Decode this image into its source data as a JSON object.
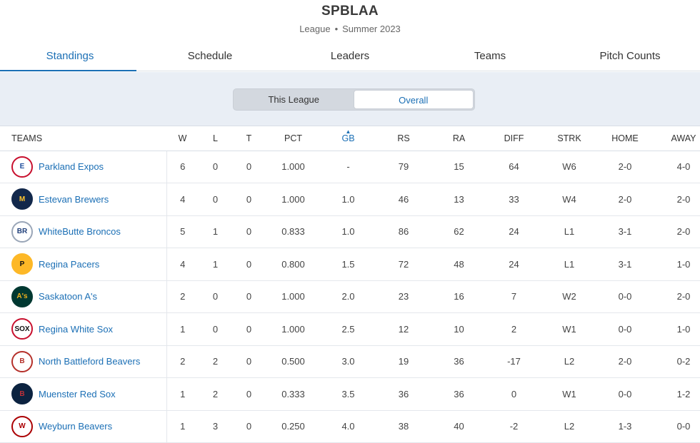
{
  "header": {
    "title": "SPBLAA",
    "subtitle_type": "League",
    "subtitle_separator": "•",
    "subtitle_season": "Summer 2023"
  },
  "tabs": [
    {
      "label": "Standings",
      "active": true
    },
    {
      "label": "Schedule"
    },
    {
      "label": "Leaders"
    },
    {
      "label": "Teams"
    },
    {
      "label": "Pitch Counts"
    }
  ],
  "toggle": {
    "options": [
      "This League",
      "Overall"
    ],
    "selected": "Overall"
  },
  "columns": [
    "TEAMS",
    "W",
    "L",
    "T",
    "PCT",
    "GB",
    "RS",
    "RA",
    "DIFF",
    "STRK",
    "HOME",
    "AWAY"
  ],
  "sorted_column": "GB",
  "sort_indicator": "▲",
  "colors": {
    "accent": "#1b6fb5"
  },
  "rows": [
    {
      "team": "Parkland Expos",
      "logo_icon": "expos-logo-icon",
      "logo_text": "E",
      "logo_bg": "#ffffff",
      "logo_fg": "#1f4e9c",
      "logo_border": "#c8102e",
      "w": "6",
      "l": "0",
      "t": "0",
      "pct": "1.000",
      "gb": "-",
      "rs": "79",
      "ra": "15",
      "diff": "64",
      "strk": "W6",
      "home": "2-0",
      "away": "4-0"
    },
    {
      "team": "Estevan Brewers",
      "logo_icon": "brewers-logo-icon",
      "logo_text": "M",
      "logo_bg": "#12284b",
      "logo_fg": "#ffc52f",
      "logo_border": "#12284b",
      "w": "4",
      "l": "0",
      "t": "0",
      "pct": "1.000",
      "gb": "1.0",
      "rs": "46",
      "ra": "13",
      "diff": "33",
      "strk": "W4",
      "home": "2-0",
      "away": "2-0"
    },
    {
      "team": "WhiteButte Broncos",
      "logo_icon": "broncos-logo-icon",
      "logo_text": "BR",
      "logo_bg": "#ffffff",
      "logo_fg": "#1f3f7a",
      "logo_border": "#9aa6b8",
      "w": "5",
      "l": "1",
      "t": "0",
      "pct": "0.833",
      "gb": "1.0",
      "rs": "86",
      "ra": "62",
      "diff": "24",
      "strk": "L1",
      "home": "3-1",
      "away": "2-0"
    },
    {
      "team": "Regina Pacers",
      "logo_icon": "pacers-logo-icon",
      "logo_text": "P",
      "logo_bg": "#fdb827",
      "logo_fg": "#111111",
      "logo_border": "#fdb827",
      "w": "4",
      "l": "1",
      "t": "0",
      "pct": "0.800",
      "gb": "1.5",
      "rs": "72",
      "ra": "48",
      "diff": "24",
      "strk": "L1",
      "home": "3-1",
      "away": "1-0"
    },
    {
      "team": "Saskatoon A's",
      "logo_icon": "athletics-logo-icon",
      "logo_text": "A's",
      "logo_bg": "#003831",
      "logo_fg": "#efb21e",
      "logo_border": "#003831",
      "w": "2",
      "l": "0",
      "t": "0",
      "pct": "1.000",
      "gb": "2.0",
      "rs": "23",
      "ra": "16",
      "diff": "7",
      "strk": "W2",
      "home": "0-0",
      "away": "2-0"
    },
    {
      "team": "Regina White Sox",
      "logo_icon": "white-sox-logo-icon",
      "logo_text": "SOX",
      "logo_bg": "#ffffff",
      "logo_fg": "#111111",
      "logo_border": "#c8102e",
      "w": "1",
      "l": "0",
      "t": "0",
      "pct": "1.000",
      "gb": "2.5",
      "rs": "12",
      "ra": "10",
      "diff": "2",
      "strk": "W1",
      "home": "0-0",
      "away": "1-0"
    },
    {
      "team": "North Battleford Beavers",
      "logo_icon": "beavers-logo-icon",
      "logo_text": "B",
      "logo_bg": "#ffffff",
      "logo_fg": "#b5302a",
      "logo_border": "#b5302a",
      "w": "2",
      "l": "2",
      "t": "0",
      "pct": "0.500",
      "gb": "3.0",
      "rs": "19",
      "ra": "36",
      "diff": "-17",
      "strk": "L2",
      "home": "2-0",
      "away": "0-2"
    },
    {
      "team": "Muenster Red Sox",
      "logo_icon": "red-sox-logo-icon",
      "logo_text": "B",
      "logo_bg": "#0c2340",
      "logo_fg": "#bd3039",
      "logo_border": "#0c2340",
      "w": "1",
      "l": "2",
      "t": "0",
      "pct": "0.333",
      "gb": "3.5",
      "rs": "36",
      "ra": "36",
      "diff": "0",
      "strk": "W1",
      "home": "0-0",
      "away": "1-2"
    },
    {
      "team": "Weyburn Beavers",
      "logo_icon": "nationals-logo-icon",
      "logo_text": "W",
      "logo_bg": "#ffffff",
      "logo_fg": "#ab0003",
      "logo_border": "#ab0003",
      "w": "1",
      "l": "3",
      "t": "0",
      "pct": "0.250",
      "gb": "4.0",
      "rs": "38",
      "ra": "40",
      "diff": "-2",
      "strk": "L2",
      "home": "1-3",
      "away": "0-0"
    }
  ]
}
